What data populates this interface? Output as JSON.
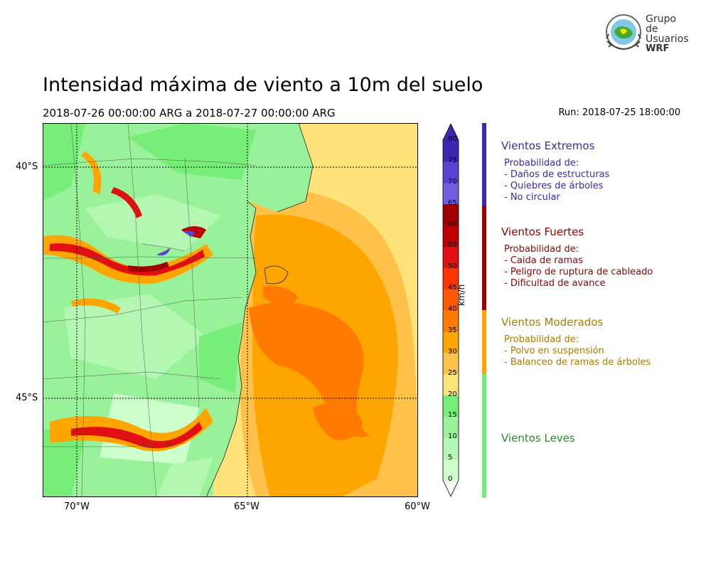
{
  "title": "Intensidad máxima de viento a 10m del suelo",
  "period": "2018-07-26 00:00:00 ARG  a  2018-07-27 00:00:00 ARG",
  "run": "Run: 2018-07-25 18:00:00",
  "logo": {
    "line1": "Grupo de",
    "line2": "Usuarios",
    "line3": "WRF"
  },
  "axes": {
    "lat_labels": [
      "40°S",
      "45°S"
    ],
    "lon_labels": [
      "70°W",
      "65°W",
      "60°W"
    ]
  },
  "colorbar": {
    "unit": "km/h",
    "ticks": [
      "0",
      "5",
      "10",
      "15",
      "20",
      "25",
      "30",
      "35",
      "40",
      "45",
      "50",
      "55",
      "60",
      "65",
      "70",
      "75",
      "80"
    ],
    "colors": [
      "#f1fff1",
      "#ccffcc",
      "#b3f7b3",
      "#99f299",
      "#77ee77",
      "#ffe27a",
      "#ffc14a",
      "#ffa500",
      "#ff7a00",
      "#ff5a00",
      "#ff3300",
      "#e01010",
      "#c00000",
      "#a00000",
      "#7060e0",
      "#5545d0",
      "#3c28b0"
    ]
  },
  "categories": [
    {
      "head": "Vientos Extremos",
      "color": "#3c28b0",
      "lines": [
        "Probabilidad de:",
        "- Daños de estructuras",
        "- Quiebres de árboles",
        "- No circular"
      ]
    },
    {
      "head": "Vientos Fuertes",
      "color": "#a00000",
      "lines": [
        "Probabilidad de:",
        "- Caida de ramas",
        "- Peligro de ruptura de cableado",
        "- Dificultad de avance"
      ]
    },
    {
      "head": "Vientos Moderados",
      "color": "#b07800",
      "bar_color": "#ffa500",
      "lines": [
        "Probabilidad de:",
        "- Polvo en suspensión",
        "- Balanceo de ramas de árboles"
      ]
    },
    {
      "head": "Vientos Leves",
      "color": "#2e8b2e",
      "bar_color": "#77ee77",
      "lines": []
    }
  ]
}
